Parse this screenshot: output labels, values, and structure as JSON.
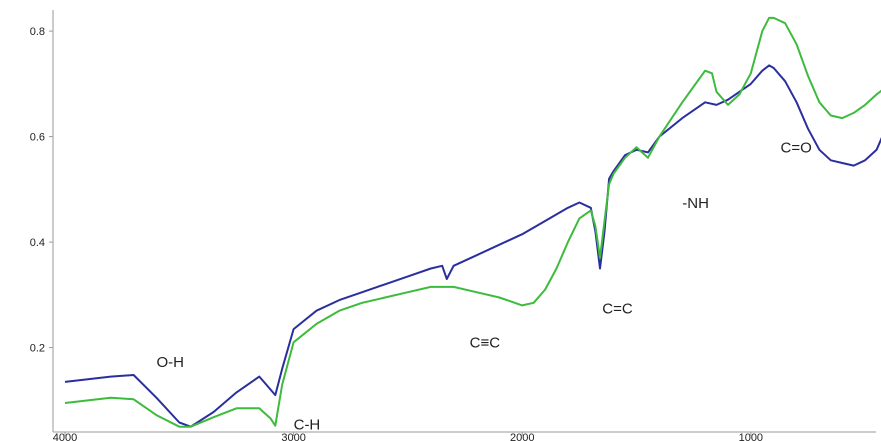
{
  "chart_data": {
    "type": "line",
    "title": "",
    "xlabel": "",
    "ylabel": "",
    "xlim": [
      4000,
      400
    ],
    "ylim": [
      0.04,
      0.84
    ],
    "x_ticks": [
      {
        "value": 4000,
        "label": "4000"
      },
      {
        "value": 3000,
        "label": "3000"
      },
      {
        "value": 2000,
        "label": "2000"
      },
      {
        "value": 1000,
        "label": "1000"
      }
    ],
    "y_ticks": [
      {
        "value": 0.2,
        "label": "0.2"
      },
      {
        "value": 0.4,
        "label": "0.4"
      },
      {
        "value": 0.6,
        "label": "0.6"
      },
      {
        "value": 0.8,
        "label": "0.8"
      }
    ],
    "grid": false,
    "legend": "none",
    "series": [
      {
        "color": "#2b2f9e",
        "x": [
          4000,
          3800,
          3700,
          3600,
          3500,
          3450,
          3350,
          3250,
          3150,
          3120,
          3080,
          3050,
          3000,
          2900,
          2800,
          2700,
          2600,
          2500,
          2400,
          2350,
          2330,
          2300,
          2200,
          2100,
          2000,
          1900,
          1800,
          1750,
          1700,
          1680,
          1660,
          1640,
          1620,
          1600,
          1550,
          1500,
          1450,
          1400,
          1300,
          1250,
          1200,
          1150,
          1100,
          1050,
          1000,
          950,
          920,
          900,
          850,
          800,
          750,
          700,
          650,
          600,
          550,
          500,
          450,
          420
        ],
        "y": [
          0.135,
          0.145,
          0.148,
          0.105,
          0.058,
          0.05,
          0.078,
          0.115,
          0.145,
          0.13,
          0.11,
          0.16,
          0.235,
          0.27,
          0.29,
          0.305,
          0.32,
          0.335,
          0.35,
          0.355,
          0.33,
          0.355,
          0.375,
          0.395,
          0.415,
          0.44,
          0.465,
          0.475,
          0.465,
          0.42,
          0.35,
          0.42,
          0.52,
          0.535,
          0.565,
          0.575,
          0.57,
          0.6,
          0.635,
          0.65,
          0.665,
          0.66,
          0.67,
          0.685,
          0.7,
          0.725,
          0.735,
          0.73,
          0.705,
          0.665,
          0.615,
          0.575,
          0.555,
          0.55,
          0.545,
          0.555,
          0.575,
          0.605
        ]
      },
      {
        "color": "#3dbb3d",
        "x": [
          4000,
          3800,
          3700,
          3600,
          3500,
          3450,
          3350,
          3250,
          3150,
          3100,
          3080,
          3050,
          3000,
          2900,
          2800,
          2700,
          2600,
          2500,
          2400,
          2300,
          2200,
          2100,
          2000,
          1950,
          1900,
          1850,
          1800,
          1750,
          1700,
          1680,
          1660,
          1640,
          1620,
          1600,
          1550,
          1500,
          1450,
          1400,
          1300,
          1250,
          1200,
          1170,
          1150,
          1100,
          1050,
          1000,
          950,
          920,
          900,
          850,
          800,
          750,
          700,
          650,
          600,
          550,
          500,
          450,
          420
        ],
        "y": [
          0.095,
          0.105,
          0.102,
          0.072,
          0.05,
          0.05,
          0.068,
          0.085,
          0.085,
          0.065,
          0.052,
          0.13,
          0.21,
          0.245,
          0.27,
          0.285,
          0.295,
          0.305,
          0.315,
          0.315,
          0.305,
          0.295,
          0.28,
          0.285,
          0.31,
          0.35,
          0.4,
          0.445,
          0.46,
          0.43,
          0.37,
          0.44,
          0.51,
          0.53,
          0.56,
          0.58,
          0.56,
          0.6,
          0.665,
          0.695,
          0.725,
          0.72,
          0.685,
          0.66,
          0.68,
          0.72,
          0.8,
          0.825,
          0.825,
          0.815,
          0.775,
          0.715,
          0.665,
          0.64,
          0.635,
          0.645,
          0.66,
          0.68,
          0.69
        ]
      }
    ],
    "annotations": [
      {
        "text": "O-H",
        "x": 3600,
        "y": 0.163
      },
      {
        "text": "C-H",
        "x": 3000,
        "y": 0.045
      },
      {
        "text": "C≡C",
        "x": 2230,
        "y": 0.2
      },
      {
        "text": "C=C",
        "x": 1650,
        "y": 0.265
      },
      {
        "text": "-NH",
        "x": 1300,
        "y": 0.465
      },
      {
        "text": "C=O",
        "x": 870,
        "y": 0.57
      }
    ]
  }
}
